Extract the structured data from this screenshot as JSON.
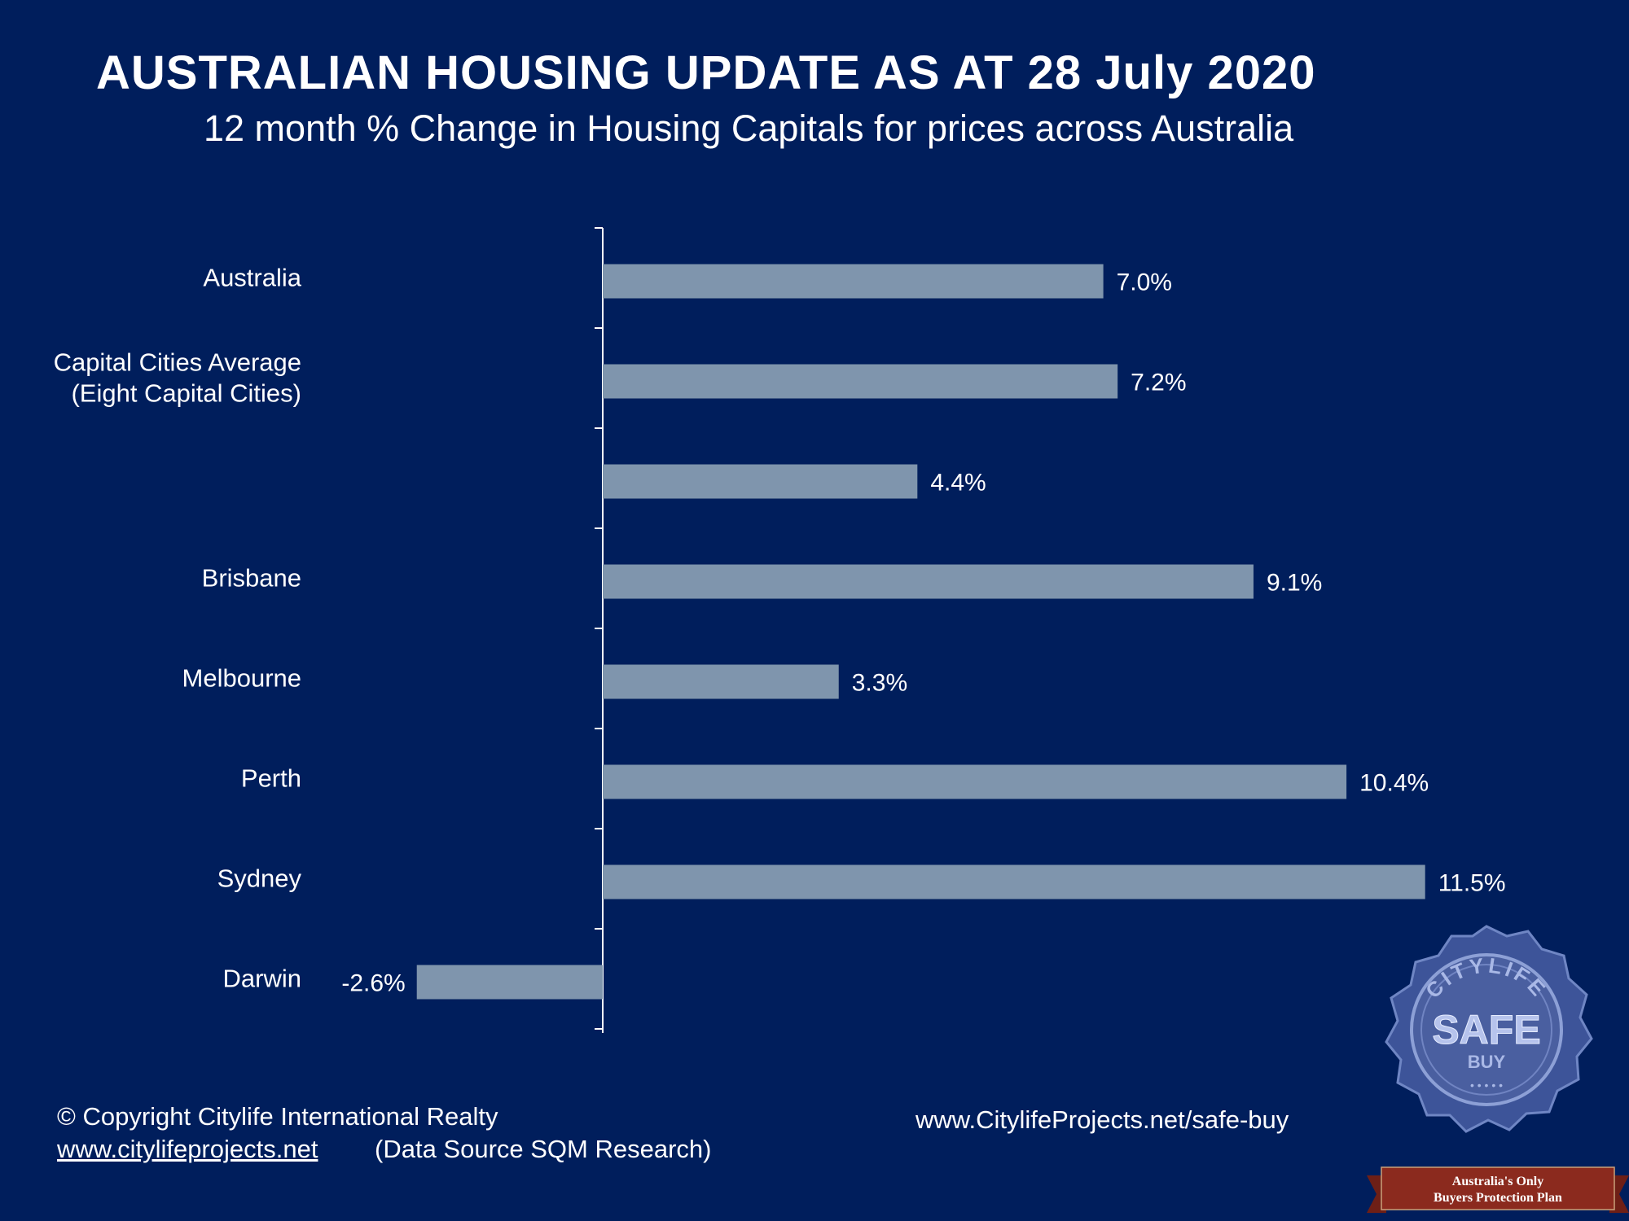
{
  "header": {
    "title": "AUSTRALIAN HOUSING UPDATE AS AT 28 July 2020",
    "subtitle": "12 month % Change in Housing Capitals for prices across Australia"
  },
  "chart_data": {
    "type": "bar",
    "orientation": "horizontal",
    "categories": [
      [
        "Australia"
      ],
      [
        "Capital Cities Average",
        "(Eight Capital Cities)"
      ],
      [],
      [
        "Brisbane"
      ],
      [
        "Melbourne"
      ],
      [
        "Perth"
      ],
      [
        "Sydney"
      ],
      [
        "Darwin"
      ]
    ],
    "values": [
      7.0,
      7.2,
      4.4,
      9.1,
      3.3,
      10.4,
      11.5,
      -2.6
    ],
    "value_labels": [
      "7.0%",
      "7.2%",
      "4.4%",
      "9.1%",
      "3.3%",
      "10.4%",
      "11.5%",
      "-2.6%"
    ],
    "bar_color": "#7f95ad",
    "background": "#001e5c",
    "grid": false,
    "legend": "none"
  },
  "footer": {
    "copyright": "© Copyright  Citylife International  Realty",
    "website": "www.citylifeprojects.net",
    "data_source": "(Data Source SQM Research)",
    "safebuy_url": "www.CitylifeProjects.net/safe-buy"
  },
  "seal": {
    "arc_text": "CITYLIFE",
    "main_text": "SAFE",
    "sub_text": "BUY",
    "dots": "• • • • •",
    "color": "#4a5fa0"
  },
  "banner": {
    "line1": "Australia's Only",
    "line2": "Buyers Protection Plan",
    "color": "#8b2a1e"
  }
}
